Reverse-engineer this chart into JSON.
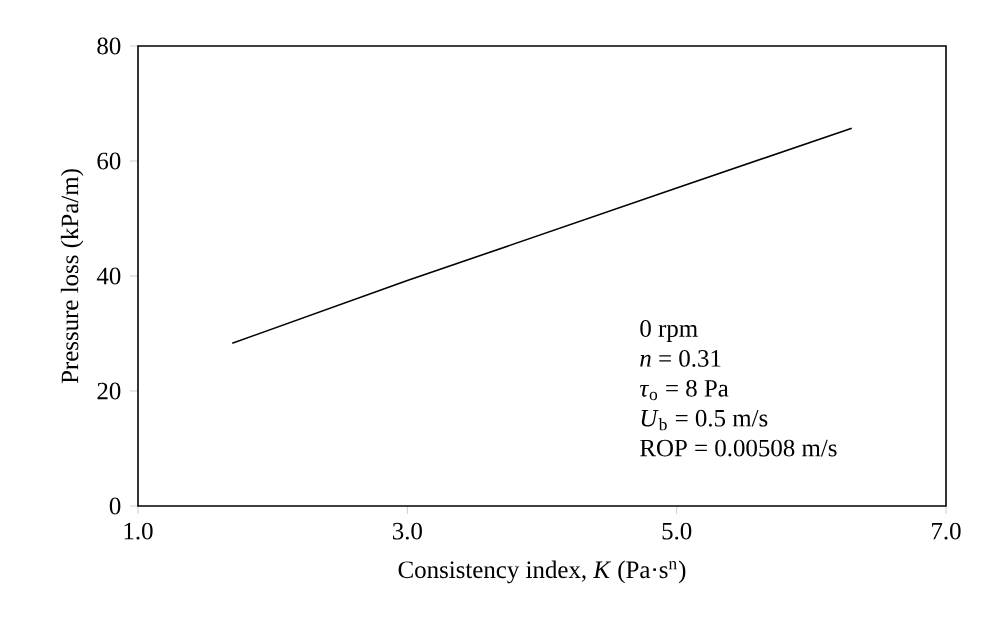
{
  "chart_data": {
    "type": "line",
    "xlabel": "Consistency index, *K* (Pa·s$^{n}$)",
    "ylabel": "Pressure loss (kPa/m)",
    "x": [
      1.7,
      3.0,
      5.0,
      6.3
    ],
    "series": [
      {
        "color": "#000000",
        "values": [
          28.3,
          39.2,
          55.3,
          65.7
        ]
      }
    ],
    "xlim": [
      1.0,
      7.0
    ],
    "ylim": [
      0,
      80
    ],
    "xticks": [
      {
        "value": 1.0,
        "label": "1.0"
      },
      {
        "value": 3.0,
        "label": "3.0"
      },
      {
        "value": 5.0,
        "label": "5.0"
      },
      {
        "value": 7.0,
        "label": "7.0"
      }
    ],
    "yticks": [
      0,
      20,
      40,
      60,
      80
    ],
    "annotations": [
      "0 rpm",
      "*n* = 0.31",
      "*τ*$_{o}$ = 8 Pa",
      "*U*$_{b}$ = 0.5 m/s",
      "ROP = 0.00508 m/s"
    ],
    "grid": false,
    "marker": "none",
    "line_style": "solid"
  }
}
